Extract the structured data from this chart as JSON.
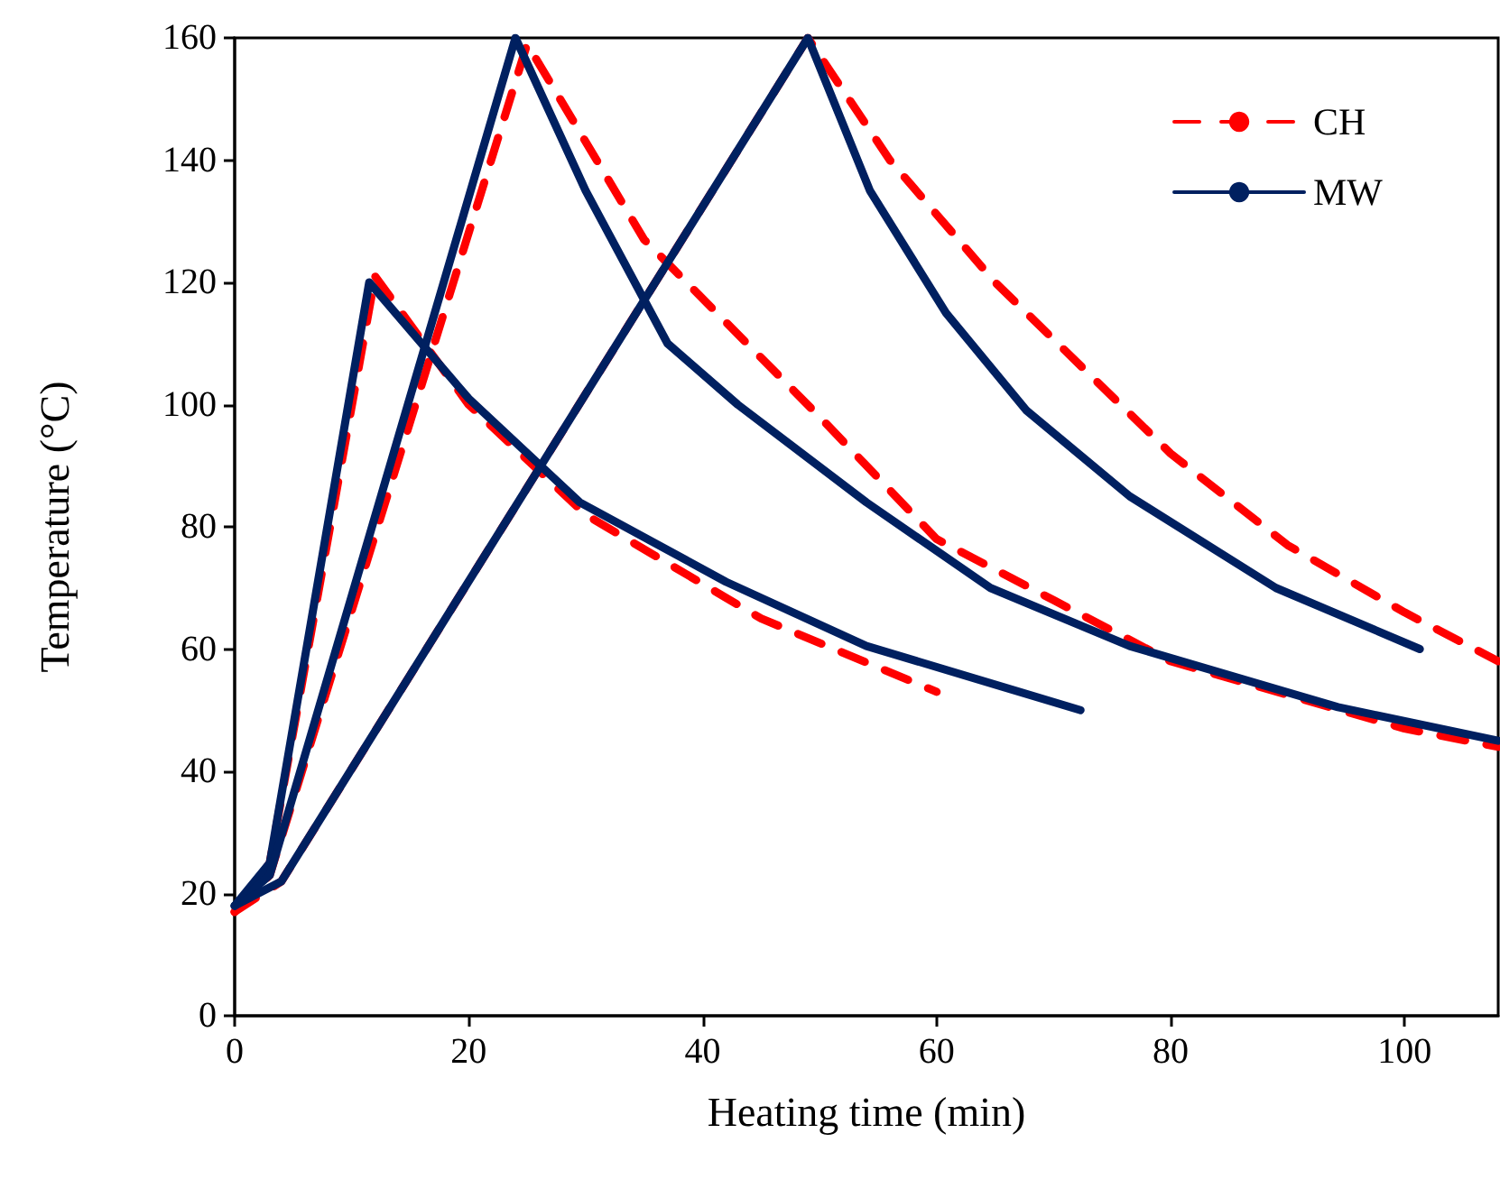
{
  "chart_data": {
    "type": "line",
    "xlabel": "Heating time (min)",
    "ylabel": "Temperature (°C)",
    "xlim": [
      0,
      108
    ],
    "xticks": [
      0,
      20,
      40,
      60,
      80,
      100
    ],
    "ylim": [
      0,
      160
    ],
    "yticks": [
      0,
      20,
      40,
      60,
      80,
      100,
      120,
      140,
      160
    ],
    "grid": false,
    "legend": "top right",
    "marker": "none",
    "series": [
      {
        "name": "CH",
        "color": "#ff0000",
        "line_style": "dashed",
        "x": [
          0,
          3,
          12,
          20,
          30,
          45,
          60
        ],
        "values": [
          17,
          25,
          121,
          100,
          82,
          65,
          53
        ]
      },
      {
        "color": "#ff0000",
        "line_style": "dashed",
        "x": [
          0,
          3,
          25,
          35,
          50,
          60,
          70,
          80,
          100,
          108
        ],
        "values": [
          17,
          23,
          159,
          127,
          98,
          78,
          68,
          58,
          47,
          44
        ]
      },
      {
        "color": "#ff0000",
        "line_style": "dashed",
        "x": [
          0,
          4,
          49,
          56,
          65,
          80,
          90,
          100,
          108
        ],
        "values": [
          17,
          22,
          160,
          140,
          120,
          92,
          77,
          66,
          58
        ]
      },
      {
        "name": "MW",
        "color": "#002060",
        "line_style": "solid",
        "x": [
          0,
          3,
          11.5,
          20,
          29.5,
          42,
          54,
          72.3
        ],
        "values": [
          18,
          25,
          120,
          101,
          84,
          71,
          60.5,
          50
        ]
      },
      {
        "color": "#002060",
        "line_style": "solid",
        "x": [
          0,
          3,
          24,
          30,
          37,
          43,
          54,
          64.6,
          76.5,
          94.3,
          108
        ],
        "values": [
          18,
          23,
          160,
          135,
          110,
          100,
          84,
          70,
          60.5,
          50.5,
          45
        ]
      },
      {
        "color": "#002060",
        "line_style": "solid",
        "x": [
          0,
          4,
          49,
          54.3,
          60.8,
          67.7,
          76.5,
          89,
          101.3
        ],
        "values": [
          18,
          22,
          160,
          135,
          115,
          99,
          85,
          70,
          60
        ]
      }
    ]
  }
}
